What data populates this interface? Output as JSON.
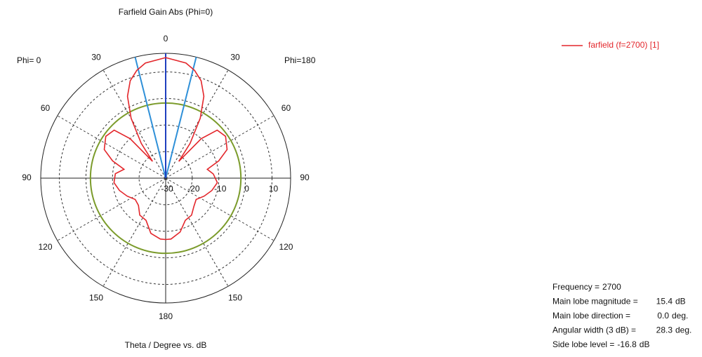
{
  "chart_data": {
    "type": "polar",
    "title": "Farfield Gain Abs (Phi=0)",
    "xlabel": "Theta / Degree vs. dB",
    "left_label": "Phi= 0",
    "right_label": "Phi=180",
    "rlim": [
      -30,
      17
    ],
    "rticks": [
      -30,
      -20,
      -10,
      0,
      10
    ],
    "angle_ticks": [
      0,
      30,
      60,
      90,
      120,
      150,
      180,
      {
        "value": 210,
        "label": "150"
      },
      {
        "value": 240,
        "label": "120"
      },
      {
        "value": 270,
        "label": "90"
      },
      {
        "value": 300,
        "label": "60"
      },
      {
        "value": 330,
        "label": "30"
      }
    ],
    "grid": true,
    "x": [
      0,
      10,
      15,
      20,
      25,
      30,
      35,
      38,
      42,
      47,
      55,
      65,
      72,
      78,
      85,
      95,
      105,
      115,
      125,
      135,
      145,
      155,
      165,
      175,
      180,
      185,
      195,
      205,
      215,
      225,
      235,
      245,
      255,
      265,
      275,
      282,
      288,
      295,
      305,
      313,
      318,
      322,
      325,
      330,
      335,
      340,
      345,
      350,
      360
    ],
    "series": [
      {
        "name": "farfield (f=2700) [1]",
        "color": "#e3262b",
        "values": [
          15.4,
          14,
          12,
          9,
          4,
          -4,
          -14,
          -22,
          -10,
          -3.5,
          -2.5,
          -4.5,
          -9,
          -14,
          -12,
          -10.5,
          -12,
          -14,
          -16,
          -15,
          -13,
          -12.5,
          -9,
          -7,
          -6.9,
          -7,
          -8.5,
          -12.5,
          -13,
          -15.5,
          -16,
          -14,
          -12,
          -10.5,
          -11,
          -14,
          -9,
          -4.5,
          -2.5,
          -3.5,
          -10,
          -22,
          -14,
          -4,
          4,
          9,
          12,
          14,
          15.4
        ]
      }
    ],
    "threshold_circle": -1.7,
    "threshold_color": "#7b9b2b",
    "direction_color": "#1f3fbf",
    "width_color": "#2f90d8",
    "info": [
      {
        "label": "Frequency =",
        "value": 2700
      },
      {
        "label": "Main lobe magnitude =",
        "value": 15.4,
        "unit": "dB"
      },
      {
        "label": "Main lobe direction =",
        "value": 0,
        "value_label": "0.0",
        "unit": "deg."
      },
      {
        "label": "Angular width (3 dB) =",
        "value": 28.3,
        "unit": "deg."
      },
      {
        "label": "Side lobe level =",
        "value": -16.8,
        "unit": "dB"
      }
    ]
  }
}
